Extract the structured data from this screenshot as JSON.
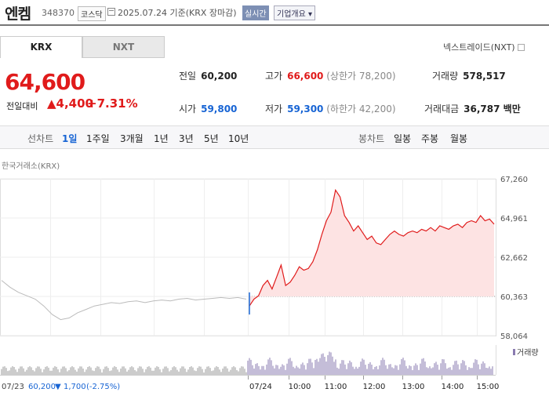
{
  "header": {
    "name": "엔켐",
    "code": "348370",
    "market": "코스닥",
    "date": "2025.07.24 기준(KRX 장마감)",
    "realtime": "실시간",
    "overview": "기업개요"
  },
  "tabs": [
    "KRX",
    "NXT"
  ],
  "nxt_link": "넥스트레이드(NXT)",
  "quote": {
    "price": "64,600",
    "change_label": "전일대비",
    "change": "4,400",
    "change_pct": "+7.31%"
  },
  "stats": {
    "prev_label": "전일",
    "prev": "60,200",
    "high_label": "고가",
    "high": "66,600",
    "upper_limit": "(상한가 78,200)",
    "volume_label": "거래량",
    "volume": "578,517",
    "open_label": "시가",
    "open": "59,800",
    "low_label": "저가",
    "low": "59,300",
    "lower_limit": "(하한가 42,200)",
    "amount_label": "거래대금",
    "amount": "36,787 백만"
  },
  "controls": {
    "line_label": "선차트",
    "periods": [
      "1일",
      "1주일",
      "3개월",
      "1년",
      "3년",
      "5년",
      "10년"
    ],
    "candle_label": "봉차트",
    "candles": [
      "일봉",
      "주봉",
      "월봉"
    ]
  },
  "chart_source": "한국거래소(KRX)",
  "chart_data": {
    "type": "line",
    "y_ticks": [
      "67,260",
      "64,961",
      "62,662",
      "60,363",
      "58,064"
    ],
    "ylim": [
      58064,
      67260
    ],
    "x_ticks": [
      "07/23",
      "07/24",
      "10:00",
      "11:00",
      "12:00",
      "13:00",
      "14:00",
      "15:00"
    ],
    "volume_label": "거래량",
    "prev_day_footer": "07/23",
    "prev_close_footer": "60,200",
    "prev_change_footer": "1,700",
    "prev_pct_footer": "(-2.75%)",
    "prev_day_series": [
      61300,
      60900,
      60600,
      60400,
      60200,
      59800,
      59300,
      59000,
      59100,
      59400,
      59600,
      59800,
      59900,
      60000,
      59950,
      60050,
      60100,
      60000,
      60100,
      60150,
      60100,
      60200,
      60250,
      60150,
      60200,
      60250,
      60300,
      60250,
      60300,
      60200
    ],
    "today_series": [
      59800,
      60200,
      60400,
      61000,
      61300,
      60800,
      61500,
      62200,
      61000,
      61200,
      61600,
      62100,
      61900,
      62000,
      62400,
      63100,
      64000,
      64800,
      65300,
      66600,
      66200,
      65100,
      64700,
      64200,
      64500,
      64100,
      63700,
      63900,
      63500,
      63400,
      63700,
      64000,
      64200,
      64000,
      63900,
      64100,
      64200,
      64100,
      64300,
      64200,
      64400,
      64200,
      64500,
      64400,
      64300,
      64500,
      64600,
      64400,
      64700,
      64800,
      64700,
      65100,
      64800,
      64900,
      64600
    ],
    "colors": {
      "up": "#e01b1b",
      "fill": "#fde3e3",
      "prev": "#bbbbbb",
      "volume": "#8a7bb0",
      "down": "#1764d4"
    }
  }
}
